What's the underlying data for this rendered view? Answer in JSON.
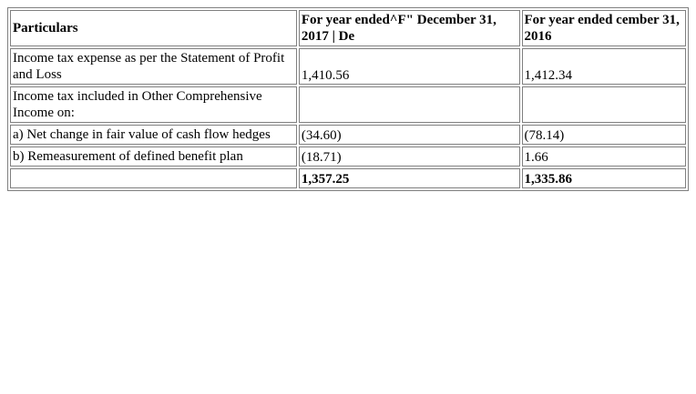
{
  "table": {
    "headers": [
      "Particulars",
      "For year ended^F\" December 31, 2017 | De",
      "For year ended cember 31, 2016"
    ],
    "rows": [
      {
        "label": "Income tax expense as per the Statement of Profit and Loss",
        "y2017": "1,410.56",
        "y2016": "1,412.34"
      },
      {
        "label": "Income tax included in Other Comprehensive Income on:",
        "y2017": "",
        "y2016": ""
      },
      {
        "label": "a) Net change in fair value of cash flow hedges",
        "y2017": "(34.60)",
        "y2016": "(78.14)"
      },
      {
        "label": "b) Remeasurement of defined benefit plan",
        "y2017": "(18.71)",
        "y2016": "1.66"
      },
      {
        "label": "",
        "y2017": "1,357.25",
        "y2016": "1,335.86"
      }
    ]
  }
}
